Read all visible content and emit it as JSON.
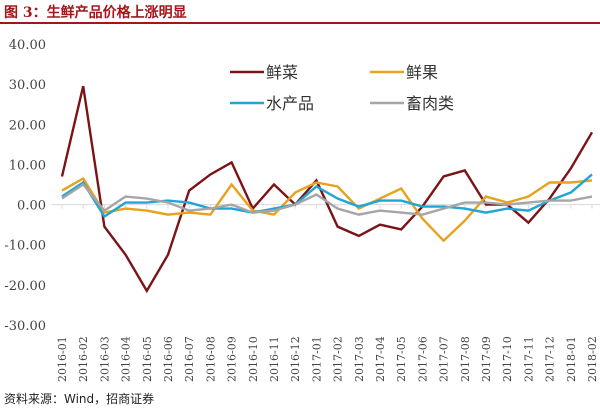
{
  "title": "图 3：生鲜产品价格上涨明显",
  "source": "资料来源：Wind，招商证券",
  "chart_data": {
    "type": "line",
    "ylim": [
      -30,
      40
    ],
    "yticks": [
      "40.00",
      "30.00",
      "20.00",
      "10.00",
      "0.00",
      "-10.00",
      "-20.00",
      "-30.00"
    ],
    "ytick_values": [
      40,
      30,
      20,
      10,
      0,
      -10,
      -20,
      -30
    ],
    "legend_position": "top-right",
    "categories": [
      "2016-01",
      "2016-02",
      "2016-03",
      "2016-04",
      "2016-05",
      "2016-06",
      "2016-07",
      "2016-08",
      "2016-09",
      "2016-10",
      "2016-11",
      "2016-12",
      "2017-01",
      "2017-02",
      "2017-03",
      "2017-04",
      "2017-05",
      "2017-06",
      "2017-07",
      "2017-08",
      "2017-09",
      "2017-10",
      "2017-11",
      "2017-12",
      "2018-01",
      "2018-02"
    ],
    "series": [
      {
        "name": "鲜菜",
        "color": "#7b1416",
        "values": [
          7,
          29.5,
          -5.5,
          -12.5,
          -21.5,
          -12.5,
          3.5,
          7.5,
          10.5,
          -1,
          5,
          0,
          6,
          -5.5,
          -7.8,
          -5,
          -6.2,
          -0.5,
          7,
          8.5,
          0,
          0,
          -4.5,
          1.5,
          9,
          18
        ]
      },
      {
        "name": "鲜果",
        "color": "#e8a21c",
        "values": [
          3.5,
          6.5,
          -2,
          -1,
          -1.5,
          -2.5,
          -2,
          -2.5,
          5,
          -1.5,
          -2.5,
          3,
          5.5,
          4.5,
          -1,
          1.5,
          4,
          -3.5,
          -9,
          -4,
          2,
          0.5,
          2,
          5.5,
          5.5,
          6
        ]
      },
      {
        "name": "水产品",
        "color": "#1fa6d6",
        "values": [
          2,
          5.5,
          -3,
          0.5,
          0.5,
          1,
          0.5,
          -1,
          -1,
          -2,
          -1,
          0,
          4.5,
          1.5,
          -0.5,
          1,
          1,
          -0.5,
          -0.5,
          -1,
          -2,
          -1,
          -1.5,
          1,
          3,
          7.5
        ]
      },
      {
        "name": "畜肉类",
        "color": "#a6a6a6",
        "values": [
          1.5,
          5,
          -1.5,
          2,
          1.5,
          0.5,
          -1.5,
          -1,
          0,
          -2,
          -1.5,
          0,
          2.5,
          -1,
          -2.5,
          -1.5,
          -2,
          -2.5,
          -1,
          0.5,
          0.5,
          0,
          0.5,
          1,
          1,
          2
        ]
      }
    ]
  }
}
